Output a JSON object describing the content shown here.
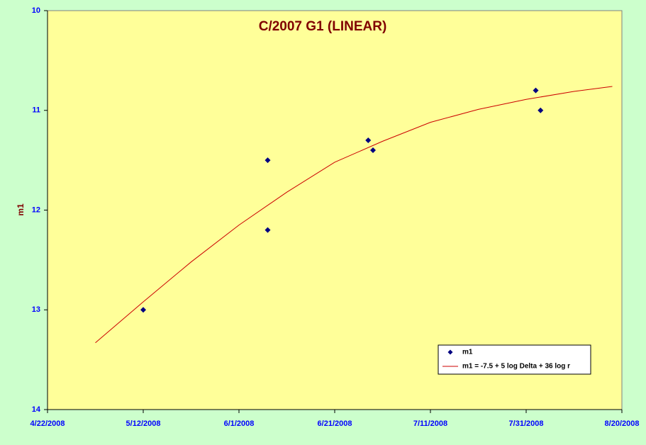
{
  "chart_data": {
    "type": "scatter",
    "title": "C/2007 G1 (LINEAR)",
    "ylabel": "m1",
    "y_inverted": true,
    "xlim": [
      "4/22/2008",
      "8/20/2008"
    ],
    "xticks": [
      "4/22/2008",
      "5/12/2008",
      "6/1/2008",
      "6/21/2008",
      "7/11/2008",
      "7/31/2008",
      "8/20/2008"
    ],
    "ylim": [
      10,
      14
    ],
    "yticks": [
      10,
      11,
      12,
      13,
      14
    ],
    "legend": "bottom-right",
    "series": [
      {
        "name": "m1",
        "type": "scatter",
        "color": "#000080",
        "x": [
          "5/12/2008",
          "6/7/2008",
          "6/7/2008",
          "6/28/2008",
          "6/29/2008",
          "8/2/2008",
          "8/3/2008"
        ],
        "values": [
          13.0,
          11.5,
          12.2,
          11.3,
          11.4,
          10.8,
          11.0
        ]
      },
      {
        "name": "m1 = -7.5 + 5 log Delta + 36 log r",
        "type": "line",
        "color": "#cc0000",
        "x": [
          "5/2/2008",
          "5/12/2008",
          "5/22/2008",
          "6/1/2008",
          "6/11/2008",
          "6/21/2008",
          "7/1/2008",
          "7/11/2008",
          "7/21/2008",
          "7/31/2008",
          "8/10/2008",
          "8/18/2008"
        ],
        "values": [
          13.33,
          12.92,
          12.52,
          12.15,
          11.82,
          11.52,
          11.31,
          11.12,
          10.99,
          10.89,
          10.81,
          10.76
        ]
      }
    ]
  }
}
